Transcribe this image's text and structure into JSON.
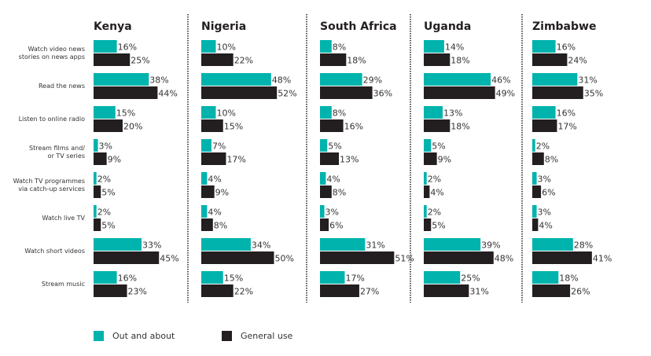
{
  "chart_data": {
    "type": "bar",
    "orientation": "horizontal",
    "categories": [
      "Watch video news stories on news apps",
      "Read the news",
      "Listen to online radio",
      "Stream films and/ or TV series",
      "Watch TV programmes via catch-up services",
      "Watch live TV",
      "Watch short videos",
      "Stream music"
    ],
    "category_lines": [
      [
        "Watch video news",
        "stories on news apps"
      ],
      [
        "Read the news"
      ],
      [
        "Listen to online radio"
      ],
      [
        "Stream films and/",
        "or TV series"
      ],
      [
        "Watch TV programmes",
        "via catch-up services"
      ],
      [
        "Watch live TV"
      ],
      [
        "Watch short videos"
      ],
      [
        "Stream music"
      ]
    ],
    "unit": "%",
    "legend": {
      "placement": "bottom-left",
      "entries": [
        "Out and about",
        "General use"
      ]
    },
    "colors": {
      "Out and about": "#00b3ad",
      "General use": "#231f20"
    },
    "grid": false,
    "panels": [
      {
        "title": "Kenya",
        "series": [
          {
            "name": "Out and about",
            "values": [
              16,
              38,
              15,
              3,
              2,
              2,
              33,
              16
            ]
          },
          {
            "name": "General use",
            "values": [
              25,
              44,
              20,
              9,
              5,
              5,
              45,
              23
            ]
          }
        ]
      },
      {
        "title": "Nigeria",
        "series": [
          {
            "name": "Out and about",
            "values": [
              10,
              48,
              10,
              7,
              4,
              4,
              34,
              15
            ]
          },
          {
            "name": "General use",
            "values": [
              22,
              52,
              15,
              17,
              9,
              8,
              50,
              22
            ]
          }
        ]
      },
      {
        "title": "South Africa",
        "series": [
          {
            "name": "Out and about",
            "values": [
              8,
              29,
              8,
              5,
              4,
              3,
              31,
              17
            ]
          },
          {
            "name": "General use",
            "values": [
              18,
              36,
              16,
              13,
              8,
              6,
              51,
              27
            ]
          }
        ]
      },
      {
        "title": "Uganda",
        "series": [
          {
            "name": "Out and about",
            "values": [
              14,
              46,
              13,
              5,
              2,
              2,
              39,
              25
            ]
          },
          {
            "name": "General use",
            "values": [
              18,
              49,
              18,
              9,
              4,
              5,
              48,
              31
            ]
          }
        ]
      },
      {
        "title": "Zimbabwe",
        "series": [
          {
            "name": "Out and about",
            "values": [
              16,
              31,
              16,
              2,
              3,
              3,
              28,
              18
            ]
          },
          {
            "name": "General use",
            "values": [
              24,
              35,
              17,
              8,
              6,
              4,
              41,
              26
            ]
          }
        ]
      }
    ]
  }
}
